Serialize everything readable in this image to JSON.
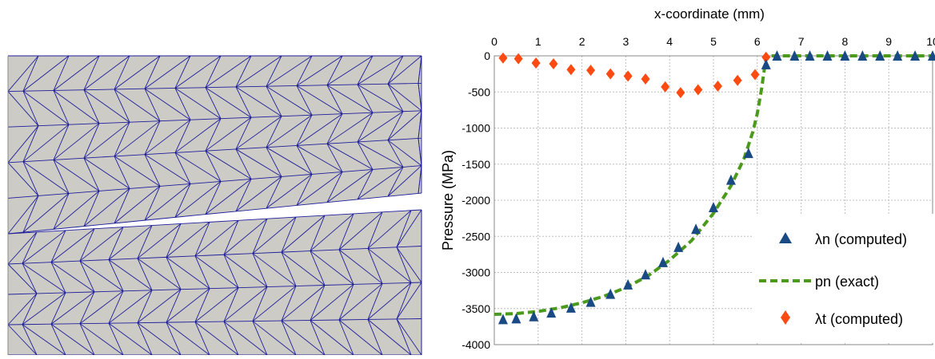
{
  "colors": {
    "mesh_fill": "#cdcbc5",
    "mesh_edge": "#1e1e9a",
    "lambda_n": "#1a4a84",
    "p_n": "#4b9a1c",
    "lambda_t": "#ff4a12",
    "grid": "#bdbdbd"
  },
  "mesh": {
    "description_icon": "mesh-icon"
  },
  "chart_data": {
    "type": "scatter",
    "title": "",
    "xlabel": "x-coordinate (mm)",
    "ylabel": "Pressure (MPa)",
    "xlim": [
      0,
      10
    ],
    "ylim": [
      -4000,
      0
    ],
    "x_axis_position": "top",
    "grid": true,
    "xticks": [
      "0",
      "1",
      "2",
      "3",
      "4",
      "5",
      "6",
      "7",
      "8",
      "9",
      "10"
    ],
    "yticks": [
      "0",
      "-500",
      "-1000",
      "-1500",
      "-2000",
      "-2500",
      "-3000",
      "-3500",
      "-4000"
    ],
    "legend_position": "bottom-right",
    "series": [
      {
        "name": "λn (computed)",
        "marker": "triangle",
        "color": "#1a4a84",
        "x": [
          0.2,
          0.5,
          0.9,
          1.3,
          1.75,
          2.2,
          2.65,
          3.05,
          3.45,
          3.85,
          4.2,
          4.6,
          5.0,
          5.4,
          5.8,
          6.2,
          6.45,
          6.85,
          7.2,
          7.6,
          8.0,
          8.4,
          8.8,
          9.2,
          9.6,
          10.0
        ],
        "y": [
          -3650,
          -3640,
          -3610,
          -3560,
          -3490,
          -3410,
          -3300,
          -3170,
          -3030,
          -2860,
          -2650,
          -2400,
          -2100,
          -1720,
          -1350,
          -120,
          0,
          0,
          0,
          0,
          0,
          0,
          0,
          0,
          0,
          0
        ]
      },
      {
        "name": "pn (exact)",
        "marker": "dashed-line",
        "color": "#4b9a1c",
        "x": [
          0,
          0.5,
          1.0,
          1.5,
          2.0,
          2.5,
          3.0,
          3.5,
          4.0,
          4.5,
          5.0,
          5.4,
          5.7,
          5.9,
          6.0,
          6.1,
          6.17,
          6.2,
          7.0,
          8.0,
          9.0,
          10.0
        ],
        "y": [
          -3580,
          -3570,
          -3540,
          -3490,
          -3420,
          -3330,
          -3210,
          -3050,
          -2830,
          -2560,
          -2180,
          -1800,
          -1420,
          -1050,
          -800,
          -450,
          -150,
          0,
          0,
          0,
          0,
          0
        ]
      },
      {
        "name": "λt (computed)",
        "marker": "diamond",
        "color": "#ff4a12",
        "x": [
          0.2,
          0.55,
          0.95,
          1.35,
          1.75,
          2.2,
          2.65,
          3.05,
          3.45,
          3.9,
          4.25,
          4.65,
          5.1,
          5.55,
          5.95,
          6.2
        ],
        "y": [
          -30,
          -40,
          -100,
          -110,
          -190,
          -200,
          -250,
          -280,
          -320,
          -430,
          -510,
          -470,
          -420,
          -340,
          -260,
          -20
        ]
      }
    ]
  }
}
